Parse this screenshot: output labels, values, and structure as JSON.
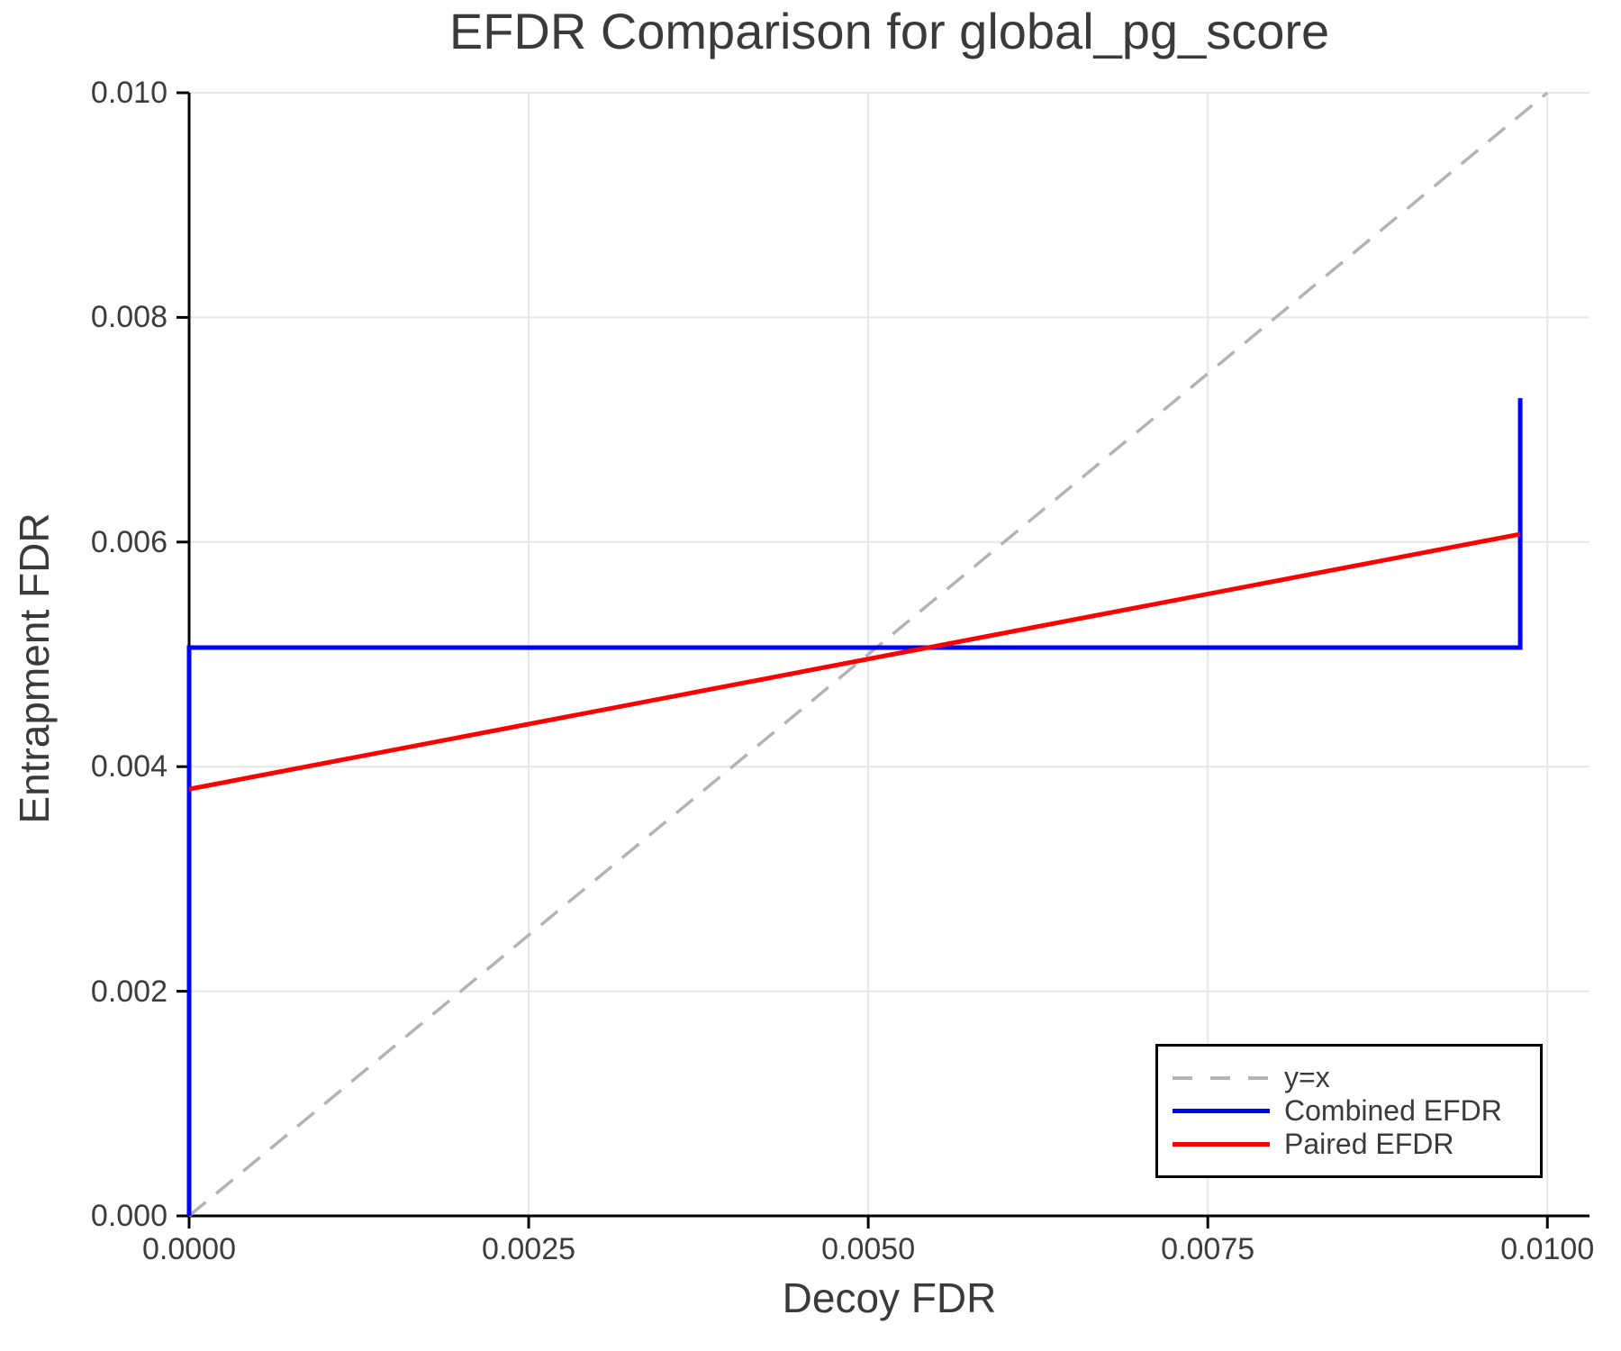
{
  "chart_data": {
    "type": "line",
    "title": "EFDR Comparison for global_pg_score",
    "xlabel": "Decoy FDR",
    "ylabel": "Entrapment FDR",
    "xlim": [
      0,
      0.01031
    ],
    "ylim": [
      0,
      0.01
    ],
    "grid": true,
    "grid_color": "#e7e7e7",
    "axis_color": "#000000",
    "text_color": "#3a3a3a",
    "x_ticks": {
      "values": [
        0,
        0.0025,
        0.005,
        0.0075,
        0.01
      ],
      "labels": [
        "0.0000",
        "0.0025",
        "0.0050",
        "0.0075",
        "0.0100"
      ]
    },
    "y_ticks": {
      "values": [
        0,
        0.002,
        0.004,
        0.006,
        0.008,
        0.01
      ],
      "labels": [
        "0.000",
        "0.002",
        "0.004",
        "0.006",
        "0.008",
        "0.010"
      ]
    },
    "legend": {
      "position": "lower right"
    },
    "series": [
      {
        "name": "y=x",
        "color": "#b3b3b3",
        "style": "dashed",
        "points": [
          [
            0,
            0
          ],
          [
            0.01,
            0.01
          ]
        ]
      },
      {
        "name": "Combined EFDR",
        "color": "#0000ff",
        "style": "solid",
        "points": [
          [
            0,
            0
          ],
          [
            0,
            0.00506
          ],
          [
            0.0098,
            0.00506
          ],
          [
            0.0098,
            0.00728
          ]
        ]
      },
      {
        "name": "Paired EFDR",
        "color": "#ff0000",
        "style": "solid",
        "points": [
          [
            0,
            0.0038
          ],
          [
            0.0098,
            0.00607
          ]
        ]
      }
    ]
  }
}
